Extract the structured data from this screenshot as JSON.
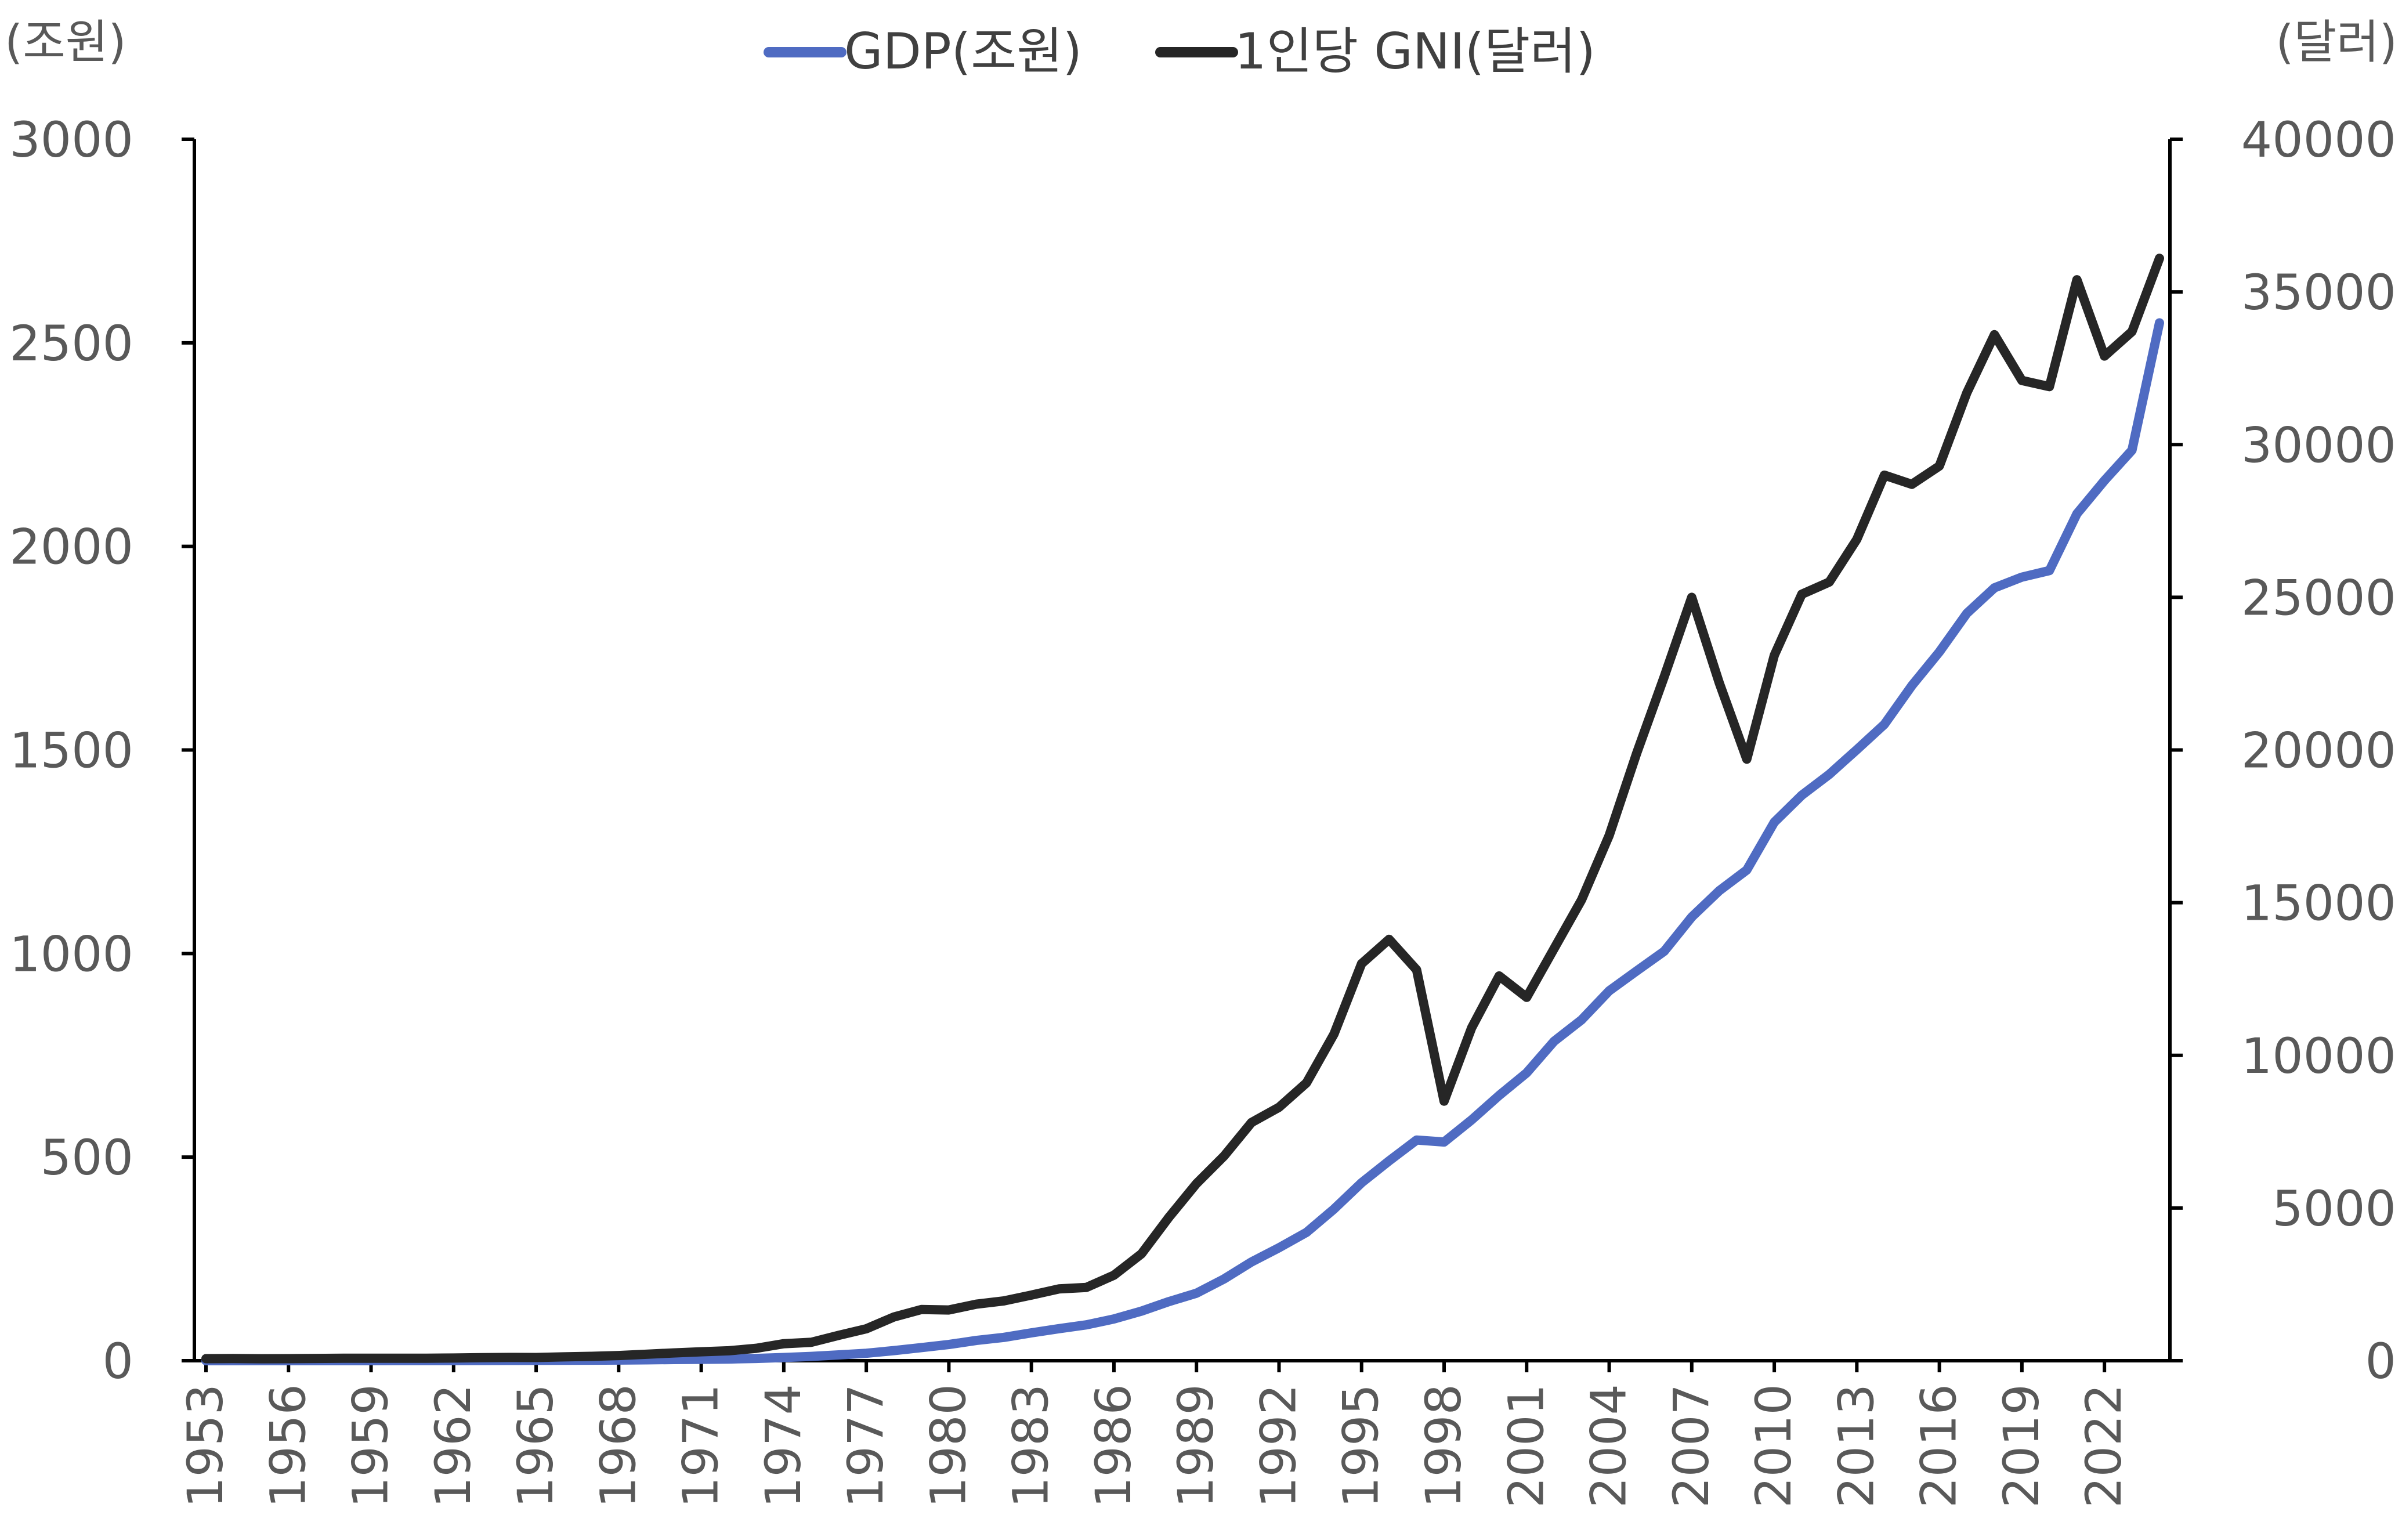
{
  "chart_data": {
    "type": "line",
    "title": "",
    "y_left_unit": "(조원)",
    "y_right_unit": "(달러)",
    "y_left_range": [
      0,
      3000
    ],
    "y_left_ticks": [
      0,
      500,
      1000,
      1500,
      2000,
      2500,
      3000
    ],
    "y_right_range": [
      0,
      40000
    ],
    "y_right_ticks": [
      0,
      5000,
      10000,
      15000,
      20000,
      25000,
      30000,
      35000,
      40000
    ],
    "x_range": [
      1953,
      2024
    ],
    "x_ticks": [
      1953,
      1956,
      1959,
      1962,
      1965,
      1968,
      1971,
      1974,
      1977,
      1980,
      1983,
      1986,
      1989,
      1992,
      1995,
      1998,
      2001,
      2004,
      2007,
      2010,
      2013,
      2016,
      2019,
      2022
    ],
    "legend_position": "top",
    "grid": false,
    "x": [
      1953,
      1954,
      1955,
      1956,
      1957,
      1958,
      1959,
      1960,
      1961,
      1962,
      1963,
      1964,
      1965,
      1966,
      1967,
      1968,
      1969,
      1970,
      1971,
      1972,
      1973,
      1974,
      1975,
      1976,
      1977,
      1978,
      1979,
      1980,
      1981,
      1982,
      1983,
      1984,
      1985,
      1986,
      1987,
      1988,
      1989,
      1990,
      1991,
      1992,
      1993,
      1994,
      1995,
      1996,
      1997,
      1998,
      1999,
      2000,
      2001,
      2002,
      2003,
      2004,
      2005,
      2006,
      2007,
      2008,
      2009,
      2010,
      2011,
      2012,
      2013,
      2014,
      2015,
      2016,
      2017,
      2018,
      2019,
      2020,
      2021,
      2022,
      2023,
      2024
    ],
    "series": [
      {
        "name": "GDP(조원)",
        "axis": "left",
        "color": "#4f6bc2",
        "values": [
          0.05,
          0.07,
          0.1,
          0.15,
          0.2,
          0.2,
          0.2,
          0.25,
          0.3,
          0.35,
          0.5,
          0.7,
          0.8,
          1.0,
          1.3,
          1.6,
          2.1,
          2.8,
          3.4,
          4.2,
          5.5,
          7.8,
          10.5,
          14.3,
          18.3,
          24.8,
          32.2,
          39.7,
          49.7,
          57.3,
          68.4,
          78.6,
          88.1,
          102.4,
          121.7,
          145.2,
          165.8,
          200.6,
          242.5,
          277.5,
          315.2,
          372.5,
          437.0,
          490.9,
          542.0,
          537.2,
          591.5,
          651.6,
          707.0,
          784.7,
          837.4,
          908.4,
          957.4,
          1005.6,
          1089.7,
          1154.2,
          1205.3,
          1322.6,
          1388.9,
          1440.1,
          1500.8,
          1562.9,
          1658.0,
          1740.8,
          1835.7,
          1898.2,
          1924.5,
          1940.7,
          2080.2,
          2161.8,
          2236.3,
          2549.1
        ]
      },
      {
        "name": "1인당 GNI(달러)",
        "axis": "right",
        "color": "#262626",
        "values": [
          67,
          70,
          65,
          66,
          74,
          80,
          81,
          79,
          82,
          87,
          100,
          107,
          105,
          125,
          142,
          169,
          210,
          255,
          292,
          324,
          407,
          557,
          602,
          830,
          1045,
          1431,
          1676,
          1660,
          1850,
          1960,
          2150,
          2350,
          2400,
          2800,
          3500,
          4700,
          5800,
          6700,
          7800,
          8300,
          9100,
          10700,
          13000,
          13800,
          12800,
          8500,
          10900,
          12600,
          11900,
          13500,
          15100,
          17200,
          19900,
          22400,
          25000,
          22200,
          19700,
          23100,
          25100,
          25500,
          26900,
          29000,
          28700,
          29300,
          31700,
          33600,
          32100,
          31900,
          35400,
          32900,
          33700,
          36100
        ]
      }
    ]
  }
}
